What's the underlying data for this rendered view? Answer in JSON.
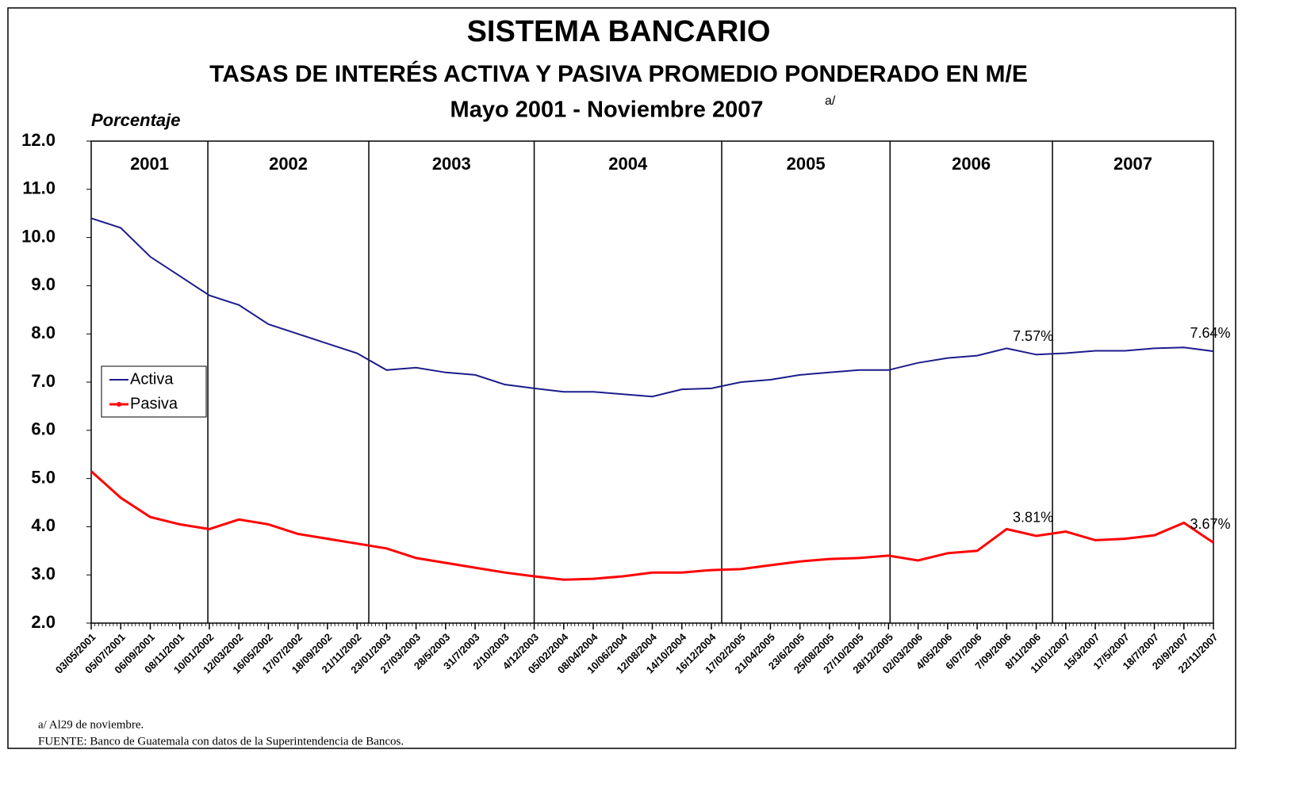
{
  "chart_data": {
    "type": "line",
    "title": "SISTEMA BANCARIO",
    "subtitle": "TASAS DE INTERÉS ACTIVA Y PASIVA PROMEDIO PONDERADO EN M/E",
    "period": "Mayo 2001 - Noviembre 2007",
    "period_note": "a/",
    "y_label": "Porcentaje",
    "categories": [
      "03/05/2001",
      "05/07/2001",
      "06/09/2001",
      "08/11/2001",
      "10/01/2002",
      "12/03/2002",
      "16/05/2002",
      "17/07/2002",
      "18/09/2002",
      "21/11/2002",
      "23/01/2003",
      "27/03/2003",
      "28/5/2003",
      "31/7/2003",
      "2/10/2003",
      "4/12/2003",
      "05/02/2004",
      "08/04/2004",
      "10/06/2004",
      "12/08/2004",
      "14/10/2004",
      "16/12/2004",
      "17/02/2005",
      "21/04/2005",
      "23/6/2005",
      "25/08/2005",
      "27/10/2005",
      "28/12/2005",
      "02/03/2006",
      "4/05/2006",
      "6/07/2006",
      "7/09/2006",
      "8/11/2006",
      "11/01/2007",
      "15/3/2007",
      "17/5/2007",
      "18/7/2007",
      "20/9/2007",
      "22/11/2007"
    ],
    "series": [
      {
        "name": "Activa",
        "color": "#1c1c8c",
        "values": [
          10.4,
          10.2,
          9.6,
          9.2,
          8.8,
          8.6,
          8.2,
          8.0,
          7.8,
          7.6,
          7.25,
          7.3,
          7.2,
          7.15,
          6.95,
          6.87,
          6.8,
          6.8,
          6.75,
          6.7,
          6.85,
          6.87,
          7.0,
          7.05,
          7.15,
          7.2,
          7.25,
          7.25,
          7.4,
          7.5,
          7.55,
          7.7,
          7.57,
          7.6,
          7.65,
          7.65,
          7.7,
          7.72,
          7.64
        ],
        "value_labels": [
          null,
          null,
          null,
          null,
          null,
          null,
          null,
          null,
          null,
          null,
          null,
          null,
          null,
          null,
          null,
          null,
          null,
          null,
          null,
          null,
          null,
          null,
          null,
          null,
          null,
          null,
          null,
          null,
          null,
          null,
          null,
          null,
          "7.57%",
          null,
          null,
          null,
          null,
          null,
          "7.64%"
        ]
      },
      {
        "name": "Pasiva",
        "color": "#ff0000",
        "values": [
          5.15,
          4.6,
          4.2,
          4.05,
          3.95,
          4.15,
          4.05,
          3.85,
          3.75,
          3.65,
          3.55,
          3.35,
          3.25,
          3.15,
          3.05,
          2.97,
          2.9,
          2.92,
          2.97,
          3.05,
          3.05,
          3.1,
          3.12,
          3.2,
          3.28,
          3.33,
          3.35,
          3.4,
          3.3,
          3.45,
          3.5,
          3.95,
          3.81,
          3.9,
          3.72,
          3.75,
          3.82,
          4.08,
          3.67
        ],
        "value_labels": [
          null,
          null,
          null,
          null,
          null,
          null,
          null,
          null,
          null,
          null,
          null,
          null,
          null,
          null,
          null,
          null,
          null,
          null,
          null,
          null,
          null,
          null,
          null,
          null,
          null,
          null,
          null,
          null,
          null,
          null,
          null,
          null,
          "3.81%",
          null,
          null,
          null,
          null,
          null,
          "3.67%"
        ]
      }
    ],
    "years": [
      "2001",
      "2002",
      "2003",
      "2004",
      "2005",
      "2006",
      "2007"
    ],
    "year_boundaries": [
      3.95,
      9.4,
      15,
      21.35,
      27.05,
      32.55
    ],
    "ylim": [
      2,
      12
    ],
    "yticks": [
      {
        "value": 2,
        "label": "2.0"
      },
      {
        "value": 3,
        "label": "3.0"
      },
      {
        "value": 4,
        "label": "4.0"
      },
      {
        "value": 5,
        "label": "5.0"
      },
      {
        "value": 6,
        "label": "6.0"
      },
      {
        "value": 7,
        "label": "7.0"
      },
      {
        "value": 8,
        "label": "8.0"
      },
      {
        "value": 9,
        "label": "9.0"
      },
      {
        "value": 10,
        "label": "10.0"
      },
      {
        "value": 11,
        "label": "11.0"
      },
      {
        "value": 12,
        "label": "12.0"
      }
    ],
    "legend": "left",
    "notes": [
      "a/ Al29 de noviembre.",
      "FUENTE: Banco de Guatemala con datos de la Superintendencia de Bancos."
    ]
  }
}
